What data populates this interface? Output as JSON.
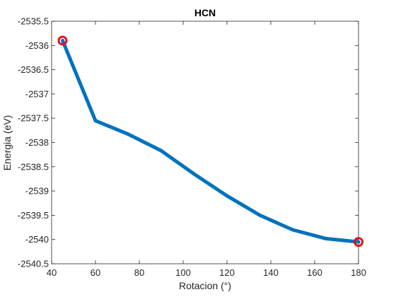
{
  "chart_data": {
    "type": "line",
    "title": "HCN",
    "xlabel": "Rotacion (°)",
    "ylabel": "Energia (eV)",
    "xlim": [
      40,
      180
    ],
    "ylim": [
      -2540.5,
      -2535.5
    ],
    "x_ticks": [
      "40",
      "60",
      "80",
      "100",
      "120",
      "140",
      "160",
      "180"
    ],
    "y_ticks": [
      "-2535.5",
      "-2536",
      "-2536.5",
      "-2537",
      "-2537.5",
      "-2538",
      "-2538.5",
      "-2539",
      "-2539.5",
      "-2540",
      "-2540.5"
    ],
    "grid": false,
    "series": [
      {
        "x": [
          45,
          60,
          75,
          90,
          105,
          120,
          135,
          150,
          165,
          180
        ],
        "y": [
          -2535.9,
          -2537.55,
          -2537.83,
          -2538.17,
          -2538.65,
          -2539.1,
          -2539.5,
          -2539.8,
          -2539.98,
          -2540.05
        ],
        "color": "#0072BD"
      }
    ],
    "markers": [
      {
        "x": 45,
        "y": -2535.9,
        "shape": "circle",
        "color": "#e0141c"
      },
      {
        "x": 180,
        "y": -2540.05,
        "shape": "circle",
        "color": "#e0141c"
      }
    ]
  }
}
